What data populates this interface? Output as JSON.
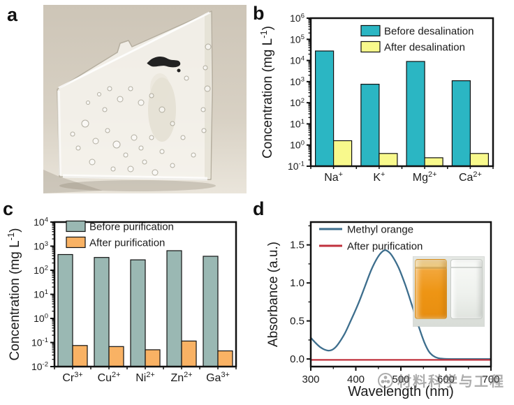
{
  "panels": {
    "a": {
      "label": "a"
    },
    "b": {
      "label": "b"
    },
    "c": {
      "label": "c"
    },
    "d": {
      "label": "d"
    }
  },
  "watermark": {
    "text": "材料科学与工程"
  },
  "chart_data": [
    {
      "id": "b",
      "type": "bar",
      "scale": "log-y",
      "ylabel": "Concentration (mg L-1)",
      "ylabel_segments": [
        {
          "text": "Concentration (mg L"
        },
        {
          "sup": "-1"
        },
        {
          "text": ")"
        }
      ],
      "ylim_exp": [
        -1,
        6
      ],
      "categories_text": [
        "Na+",
        "K+",
        "Mg2+",
        "Ca2+"
      ],
      "categories": [
        [
          {
            "text": "Na"
          },
          {
            "sup": "+"
          }
        ],
        [
          {
            "text": "K"
          },
          {
            "sup": "+"
          }
        ],
        [
          {
            "text": "Mg"
          },
          {
            "sup": "2+"
          }
        ],
        [
          {
            "text": "Ca"
          },
          {
            "sup": "2+"
          }
        ]
      ],
      "series": [
        {
          "name": "Before desalination",
          "color": "#2bb6c3",
          "values": [
            28000,
            750,
            9000,
            1100
          ]
        },
        {
          "name": "After desalination",
          "color": "#f8f98c",
          "values": [
            1.6,
            0.4,
            0.25,
            0.4
          ]
        }
      ],
      "legend_position": "top-right-inside",
      "grid": false
    },
    {
      "id": "c",
      "type": "bar",
      "scale": "log-y",
      "ylabel": "Concentration (mg L-1)",
      "ylabel_segments": [
        {
          "text": "Concentration (mg L"
        },
        {
          "sup": "-1"
        },
        {
          "text": ")"
        }
      ],
      "ylim_exp": [
        -2,
        4
      ],
      "categories_text": [
        "Cr3+",
        "Cu2+",
        "Ni2+",
        "Zn2+",
        "Ga3+"
      ],
      "categories": [
        [
          {
            "text": "Cr"
          },
          {
            "sup": "3+"
          }
        ],
        [
          {
            "text": "Cu"
          },
          {
            "sup": "2+"
          }
        ],
        [
          {
            "text": "Ni"
          },
          {
            "sup": "2+"
          }
        ],
        [
          {
            "text": "Zn"
          },
          {
            "sup": "2+"
          }
        ],
        [
          {
            "text": "Ga"
          },
          {
            "sup": "3+"
          }
        ]
      ],
      "series": [
        {
          "name": "Before purification",
          "color": "#9ab8b3",
          "values": [
            450,
            340,
            270,
            650,
            380
          ]
        },
        {
          "name": "After purification",
          "color": "#f9b264",
          "values": [
            0.075,
            0.068,
            0.05,
            0.115,
            0.045
          ]
        }
      ],
      "legend_position": "top-left-inside",
      "grid": false
    },
    {
      "id": "d",
      "type": "line",
      "xlabel": "Wavelength (nm)",
      "ylabel": "Absorbance (a.u.)",
      "xlim": [
        300,
        700
      ],
      "ylim": [
        -0.1,
        1.8
      ],
      "xticks": [
        300,
        400,
        500,
        600,
        700
      ],
      "yticks": [
        0.0,
        0.5,
        1.0,
        1.5
      ],
      "series": [
        {
          "name": "Methyl orange",
          "color": "#3d6e8d",
          "points": [
            [
              300,
              0.28
            ],
            [
              310,
              0.215
            ],
            [
              320,
              0.16
            ],
            [
              330,
              0.125
            ],
            [
              340,
              0.11
            ],
            [
              350,
              0.13
            ],
            [
              360,
              0.19
            ],
            [
              375,
              0.33
            ],
            [
              390,
              0.52
            ],
            [
              405,
              0.72
            ],
            [
              420,
              0.95
            ],
            [
              435,
              1.18
            ],
            [
              450,
              1.35
            ],
            [
              462,
              1.425
            ],
            [
              470,
              1.42
            ],
            [
              480,
              1.36
            ],
            [
              495,
              1.2
            ],
            [
              510,
              0.97
            ],
            [
              525,
              0.7
            ],
            [
              540,
              0.42
            ],
            [
              552,
              0.22
            ],
            [
              562,
              0.1
            ],
            [
              572,
              0.04
            ],
            [
              582,
              0.013
            ],
            [
              595,
              0.003
            ],
            [
              620,
              0.0
            ],
            [
              700,
              0.0
            ]
          ]
        },
        {
          "name": "After purification",
          "color": "#c0313d",
          "points": [
            [
              300,
              -0.012
            ],
            [
              700,
              -0.012
            ]
          ]
        }
      ],
      "legend_position": "top-left-inside",
      "grid": false
    }
  ]
}
